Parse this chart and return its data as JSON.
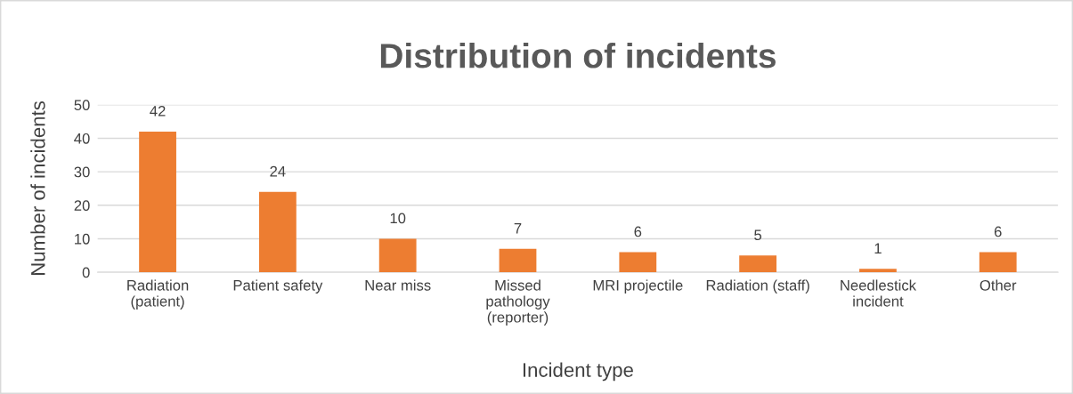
{
  "chart_data": {
    "type": "bar",
    "title": "Distribution of incidents",
    "xlabel": "Incident type",
    "ylabel": "Number of incidents",
    "categories": [
      "Radiation\n(patient)",
      "Patient safety",
      "Near miss",
      "Missed\npathology\n(reporter)",
      "MRI projectile",
      "Radiation (staff)",
      "Needlestick\nincident",
      "Other"
    ],
    "values": [
      42,
      24,
      10,
      7,
      6,
      5,
      1,
      6
    ],
    "color": "#ed7d31",
    "ylim": [
      0,
      50
    ],
    "yticks": [
      0,
      10,
      20,
      30,
      40,
      50
    ],
    "grid": "y",
    "data_labels": true
  }
}
